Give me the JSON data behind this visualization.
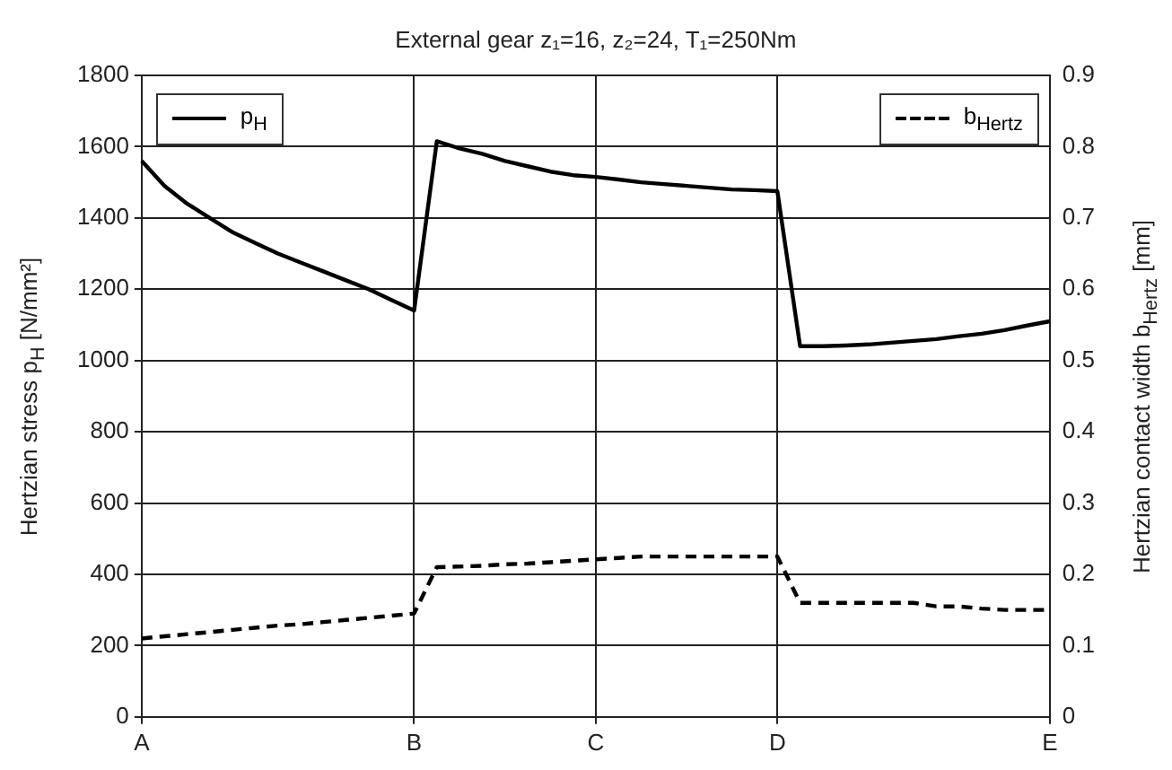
{
  "chart_data": {
    "type": "line",
    "title": "External gear z₁=16, z₂=24, T₁=250Nm",
    "ylabel": "Hertzian stress p$_{H}$ [N/mm²]",
    "y2label": "Hertzian contact width b$_{Hertz}$ [mm]",
    "categories": [
      "A",
      null,
      null,
      null,
      null,
      null,
      null,
      null,
      null,
      null,
      null,
      null,
      "B",
      null,
      null,
      null,
      null,
      null,
      null,
      null,
      "C",
      null,
      null,
      null,
      null,
      null,
      null,
      null,
      "D",
      null,
      null,
      null,
      null,
      null,
      null,
      null,
      null,
      null,
      null,
      null,
      "E"
    ],
    "ylim": [
      0,
      1800
    ],
    "yticks": [
      0,
      200,
      400,
      600,
      800,
      1000,
      1200,
      1400,
      1600,
      1800
    ],
    "y2lim": [
      0,
      0.9
    ],
    "y2ticks": [
      0,
      0.1,
      0.2,
      0.3,
      0.4,
      0.5,
      0.6,
      0.7,
      0.8,
      0.9
    ],
    "grid": true,
    "legend": "top",
    "marker": "none",
    "series": [
      {
        "name": "p$_{H}$",
        "color": "#000000",
        "line_style": "solid",
        "values": [
          1560,
          1490,
          1440,
          1400,
          1360,
          1330,
          1300,
          1275,
          1250,
          1225,
          1200,
          1170,
          1140,
          1615,
          1595,
          1580,
          1560,
          1545,
          1530,
          1520,
          1515,
          1508,
          1500,
          1495,
          1490,
          1485,
          1480,
          1478,
          1475,
          1040,
          1040,
          1042,
          1045,
          1050,
          1055,
          1060,
          1068,
          1075,
          1085,
          1098,
          1110
        ]
      },
      {
        "name": "b$_{Hertz}$",
        "color": "#000000",
        "line_style": "dashed",
        "axis": "y2",
        "values": [
          0.11,
          0.113,
          0.116,
          0.119,
          0.122,
          0.125,
          0.128,
          0.13,
          0.133,
          0.136,
          0.139,
          0.142,
          0.145,
          0.21,
          0.211,
          0.212,
          0.214,
          0.215,
          0.217,
          0.219,
          0.221,
          0.223,
          0.225,
          0.225,
          0.225,
          0.225,
          0.225,
          0.225,
          0.225,
          0.16,
          0.16,
          0.16,
          0.16,
          0.16,
          0.16,
          0.155,
          0.155,
          0.152,
          0.15,
          0.15,
          0.15
        ]
      }
    ]
  }
}
